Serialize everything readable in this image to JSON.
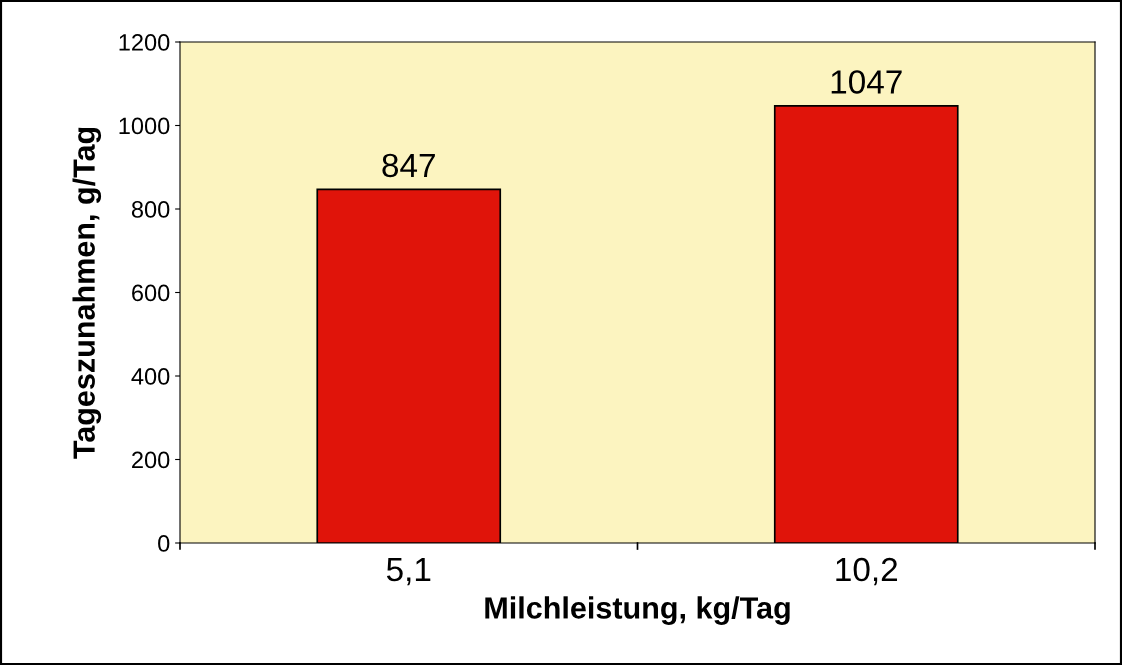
{
  "chart_data": {
    "type": "bar",
    "xlabel": "Milchleistung, kg/Tag",
    "ylabel": "Tageszunahmen, g/Tag",
    "categories": [
      "5,1",
      "10,2"
    ],
    "values": [
      847,
      1047
    ],
    "color": "#e0140a",
    "ylim": [
      0,
      1200
    ],
    "yticks": [
      0,
      200,
      400,
      600,
      800,
      1000,
      1200
    ],
    "grid": false,
    "data_labels": true
  }
}
